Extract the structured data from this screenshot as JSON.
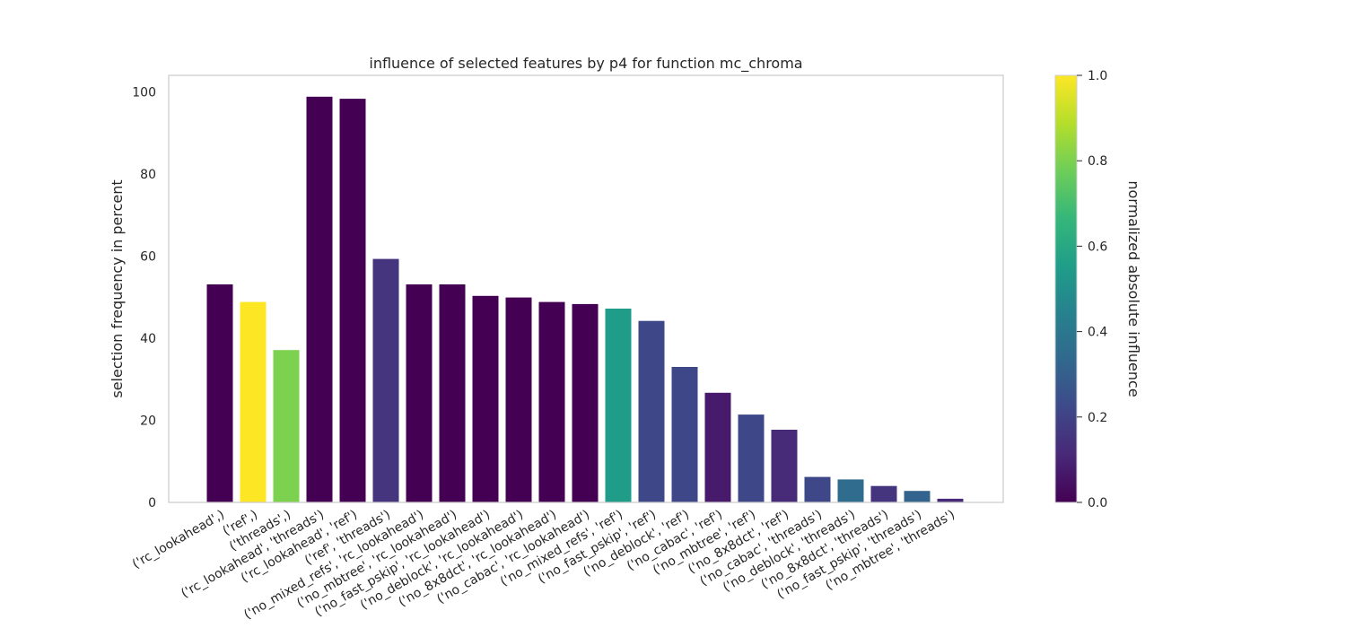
{
  "chart_data": {
    "type": "bar",
    "title": "influence of selected features by p4 for function mc_chroma",
    "xlabel": "",
    "ylabel": "selection frequency in percent",
    "ylim": [
      0,
      104
    ],
    "yticks": [
      0,
      20,
      40,
      60,
      80,
      100
    ],
    "grid": false,
    "categories": [
      "('rc_lookahead',)",
      "('ref',)",
      "('threads',)",
      "('rc_lookahead', 'threads')",
      "('rc_lookahead', 'ref')",
      "('ref', 'threads')",
      "('no_mixed_refs', 'rc_lookahead')",
      "('no_mbtree', 'rc_lookahead')",
      "('no_fast_pskip', 'rc_lookahead')",
      "('no_deblock', 'rc_lookahead')",
      "('no_8x8dct', 'rc_lookahead')",
      "('no_cabac', 'rc_lookahead')",
      "('no_mixed_refs', 'ref')",
      "('no_fast_pskip', 'ref')",
      "('no_deblock', 'ref')",
      "('no_cabac', 'ref')",
      "('no_mbtree', 'ref')",
      "('no_8x8dct', 'ref')",
      "('no_cabac', 'threads')",
      "('no_deblock', 'threads')",
      "('no_8x8dct', 'threads')",
      "('no_fast_pskip', 'threads')",
      "('no_mbtree', 'threads')"
    ],
    "values": [
      53.1,
      48.8,
      37.1,
      98.8,
      98.3,
      59.3,
      53.1,
      53.1,
      50.3,
      49.9,
      48.8,
      48.3,
      47.2,
      44.2,
      33.0,
      26.7,
      21.4,
      17.7,
      6.2,
      5.6,
      4.0,
      2.8,
      0.9
    ],
    "influence": [
      0.0,
      1.0,
      0.8,
      0.0,
      0.0,
      0.15,
      0.0,
      0.0,
      0.0,
      0.0,
      0.0,
      0.0,
      0.55,
      0.22,
      0.22,
      0.07,
      0.22,
      0.12,
      0.22,
      0.35,
      0.15,
      0.32,
      0.12
    ],
    "colorbar": {
      "label": "normalized absolute influence",
      "range": [
        0,
        1
      ],
      "ticks": [
        "0.0",
        "0.2",
        "0.4",
        "0.6",
        "0.8",
        "1.0"
      ],
      "colormap": "viridis"
    },
    "colors": {
      "viridis": [
        "#440154",
        "#482878",
        "#3e4989",
        "#31688e",
        "#26828e",
        "#1f9e89",
        "#35b779",
        "#6ece58",
        "#b5de2b",
        "#fde725"
      ],
      "axis": "#cccccc",
      "text": "#262626"
    }
  }
}
